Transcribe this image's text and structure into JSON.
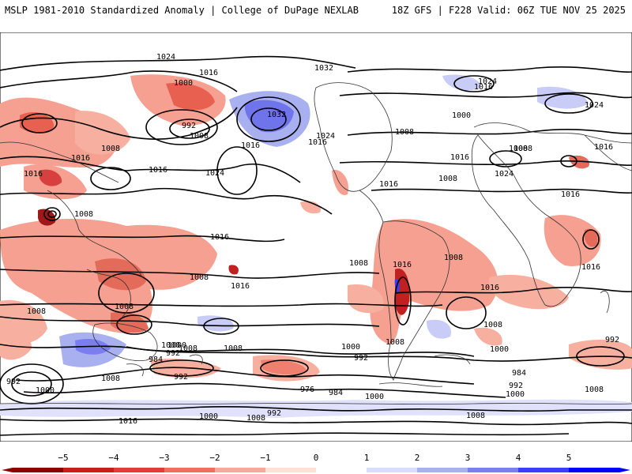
{
  "header": {
    "left": "MSLP 1981-2010 Standardized Anomaly | College of DuPage NEXLAB",
    "right": "18Z GFS | F228 Valid: 06Z TUE NOV 25 2025"
  },
  "map": {
    "isobar_labels": [
      "1024",
      "1016",
      "1000",
      "992",
      "1008",
      "1016",
      "1008",
      "1016",
      "1016",
      "1024",
      "1032",
      "1032",
      "1016",
      "1024",
      "1016",
      "1008",
      "1016",
      "1016",
      "1024",
      "1008",
      "1000",
      "1024",
      "1008",
      "1016",
      "1016",
      "1008",
      "1008",
      "1016",
      "1008",
      "1008",
      "1016",
      "1008",
      "1016",
      "1016",
      "1008",
      "1016",
      "1000",
      "1008",
      "992",
      "984",
      "992",
      "1008",
      "1000",
      "992",
      "1008",
      "1000",
      "976",
      "984",
      "1000",
      "1008",
      "992",
      "1008",
      "1016",
      "1000",
      "1008",
      "992",
      "1000",
      "984",
      "992",
      "1000",
      "1008",
      "1008",
      "992",
      "1000",
      "1008",
      "1024",
      "1016"
    ]
  },
  "colorbar": {
    "ticks": [
      "−5",
      "−4",
      "−3",
      "−2",
      "−1",
      "0",
      "1",
      "2",
      "3",
      "4",
      "5"
    ],
    "colors": [
      "#8b0000",
      "#c81e1e",
      "#e03c3c",
      "#ef6e64",
      "#f7a89a",
      "#fde0d6",
      "#ffffff",
      "#d8dcfa",
      "#a8b0f0",
      "#7a7ef0",
      "#3a3ef8",
      "#0000ff"
    ]
  }
}
